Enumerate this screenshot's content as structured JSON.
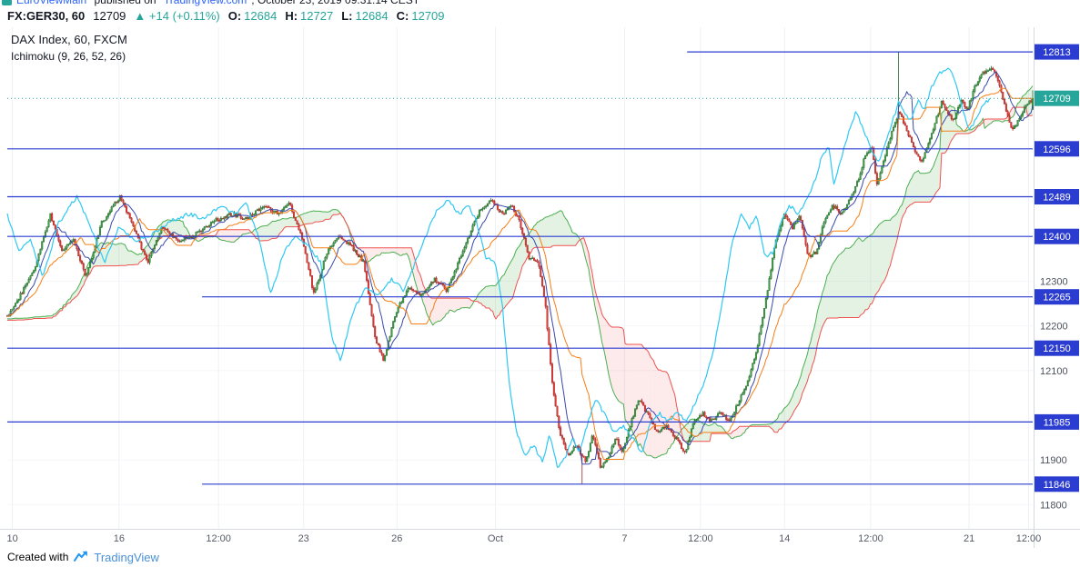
{
  "attribution": {
    "username": "EuroViewMain",
    "published": " published on ",
    "site": "TradingView.com",
    "timestamp": ", October 23, 2019 09:31:14 CEST"
  },
  "symbol_bar": {
    "symbol": "FX:GER30, 60",
    "last": "12709",
    "change": "▲ +14 (+0.11%)",
    "ohlc": [
      {
        "label": "O:",
        "value": "12684"
      },
      {
        "label": "H:",
        "value": "12727"
      },
      {
        "label": "L:",
        "value": "12684"
      },
      {
        "label": "C:",
        "value": "12709"
      }
    ]
  },
  "legend": {
    "title": "DAX Index, 60, FXCM",
    "indicator": "Ichimoku (9, 26, 52, 26)"
  },
  "footer": {
    "created_with": "Created with",
    "brand": "TradingView"
  },
  "chart_data": {
    "type": "candlestick",
    "title": "DAX Index, 60, FXCM with Ichimoku (9, 26, 52, 26)",
    "symbol": "FX:GER30",
    "interval_minutes": 60,
    "last_price": 12709,
    "ohlc_current": {
      "open": 12684,
      "high": 12727,
      "low": 12684,
      "close": 12709
    },
    "bars": 620,
    "y_axis": {
      "max": 12868,
      "min": 11746,
      "ticks": [
        12300,
        12200,
        12100,
        11900,
        11800
      ]
    },
    "x_axis": {
      "ticks": [
        {
          "label": "10",
          "f": 0.005
        },
        {
          "label": "16",
          "f": 0.109
        },
        {
          "label": "12:00",
          "f": 0.206
        },
        {
          "label": "23",
          "f": 0.289
        },
        {
          "label": "26",
          "f": 0.38
        },
        {
          "label": "Oct",
          "f": 0.476
        },
        {
          "label": "7",
          "f": 0.602
        },
        {
          "label": "12:00",
          "f": 0.676
        },
        {
          "label": "14",
          "f": 0.758
        },
        {
          "label": "12:00",
          "f": 0.842
        },
        {
          "label": "21",
          "f": 0.938
        },
        {
          "label": "12:00",
          "f": 0.996
        }
      ]
    },
    "levels": [
      {
        "price": 12813,
        "from": 0.663
      },
      {
        "price": 12596,
        "from": 0
      },
      {
        "price": 12489,
        "from": 0
      },
      {
        "price": 12400,
        "from": 0
      },
      {
        "price": 12265,
        "from": 0.19
      },
      {
        "price": 12150,
        "from": 0
      },
      {
        "price": 11985,
        "from": 0
      },
      {
        "price": 11846,
        "from": 0.19
      }
    ],
    "price_path": [
      [
        0.002,
        12225
      ],
      [
        0.012,
        12265
      ],
      [
        0.027,
        12330
      ],
      [
        0.042,
        12450
      ],
      [
        0.053,
        12370
      ],
      [
        0.064,
        12395
      ],
      [
        0.077,
        12310
      ],
      [
        0.092,
        12430
      ],
      [
        0.11,
        12490
      ],
      [
        0.124,
        12415
      ],
      [
        0.137,
        12340
      ],
      [
        0.151,
        12425
      ],
      [
        0.166,
        12390
      ],
      [
        0.184,
        12405
      ],
      [
        0.201,
        12435
      ],
      [
        0.219,
        12450
      ],
      [
        0.234,
        12440
      ],
      [
        0.25,
        12470
      ],
      [
        0.264,
        12450
      ],
      [
        0.275,
        12475
      ],
      [
        0.288,
        12395
      ],
      [
        0.299,
        12270
      ],
      [
        0.311,
        12360
      ],
      [
        0.323,
        12405
      ],
      [
        0.337,
        12375
      ],
      [
        0.348,
        12340
      ],
      [
        0.359,
        12170
      ],
      [
        0.367,
        12125
      ],
      [
        0.379,
        12230
      ],
      [
        0.392,
        12290
      ],
      [
        0.403,
        12265
      ],
      [
        0.417,
        12305
      ],
      [
        0.428,
        12280
      ],
      [
        0.438,
        12330
      ],
      [
        0.45,
        12400
      ],
      [
        0.461,
        12460
      ],
      [
        0.472,
        12480
      ],
      [
        0.483,
        12450
      ],
      [
        0.492,
        12470
      ],
      [
        0.5,
        12430
      ],
      [
        0.509,
        12350
      ],
      [
        0.518,
        12345
      ],
      [
        0.525,
        12240
      ],
      [
        0.532,
        12060
      ],
      [
        0.539,
        11960
      ],
      [
        0.547,
        11905
      ],
      [
        0.555,
        11935
      ],
      [
        0.564,
        11895
      ],
      [
        0.571,
        11960
      ],
      [
        0.579,
        11880
      ],
      [
        0.586,
        11905
      ],
      [
        0.593,
        11950
      ],
      [
        0.6,
        11915
      ],
      [
        0.607,
        11975
      ],
      [
        0.616,
        12035
      ],
      [
        0.625,
        12000
      ],
      [
        0.634,
        11960
      ],
      [
        0.643,
        11975
      ],
      [
        0.653,
        11945
      ],
      [
        0.661,
        11915
      ],
      [
        0.669,
        11985
      ],
      [
        0.678,
        12005
      ],
      [
        0.687,
        11985
      ],
      [
        0.696,
        12010
      ],
      [
        0.704,
        11985
      ],
      [
        0.713,
        12030
      ],
      [
        0.722,
        12075
      ],
      [
        0.731,
        12150
      ],
      [
        0.74,
        12260
      ],
      [
        0.749,
        12390
      ],
      [
        0.758,
        12450
      ],
      [
        0.766,
        12420
      ],
      [
        0.773,
        12445
      ],
      [
        0.781,
        12355
      ],
      [
        0.789,
        12365
      ],
      [
        0.797,
        12440
      ],
      [
        0.805,
        12470
      ],
      [
        0.813,
        12450
      ],
      [
        0.821,
        12480
      ],
      [
        0.829,
        12520
      ],
      [
        0.837,
        12585
      ],
      [
        0.843,
        12600
      ],
      [
        0.848,
        12520
      ],
      [
        0.855,
        12570
      ],
      [
        0.862,
        12630
      ],
      [
        0.87,
        12680
      ],
      [
        0.877,
        12640
      ],
      [
        0.884,
        12600
      ],
      [
        0.891,
        12565
      ],
      [
        0.898,
        12605
      ],
      [
        0.905,
        12655
      ],
      [
        0.911,
        12700
      ],
      [
        0.917,
        12675
      ],
      [
        0.924,
        12660
      ],
      [
        0.93,
        12705
      ],
      [
        0.936,
        12680
      ],
      [
        0.942,
        12725
      ],
      [
        0.949,
        12760
      ],
      [
        0.956,
        12775
      ],
      [
        0.962,
        12770
      ],
      [
        0.968,
        12740
      ],
      [
        0.974,
        12680
      ],
      [
        0.98,
        12635
      ],
      [
        0.987,
        12665
      ],
      [
        0.993,
        12690
      ],
      [
        1.0,
        12709
      ]
    ],
    "wick_marks": [
      {
        "f": 0.561,
        "low": 11846
      },
      {
        "f": 0.869,
        "high": 12813
      },
      {
        "f": 0.11,
        "high": 12493
      }
    ],
    "indicator": {
      "name": "Ichimoku",
      "params": [
        9,
        26,
        52,
        26
      ]
    },
    "colors": {
      "up": "#43a047",
      "up_border": "#1f662a",
      "down": "#e53935",
      "down_border": "#9e2723",
      "tenkan": "#3949ab",
      "kijun": "#f57f17",
      "chikou": "#2fc8f2",
      "senkou_a": "#4caf50",
      "senkou_b": "#ef5350",
      "cloud_up": "rgba(103,183,108,0.18)",
      "cloud_down": "rgba(239,83,80,0.12)",
      "level": "#2b3dd1",
      "badge": "#2b3dd1",
      "last_badge": "#26a69a",
      "last_line": "#26a69a",
      "axis_text": "#4c525e"
    }
  }
}
